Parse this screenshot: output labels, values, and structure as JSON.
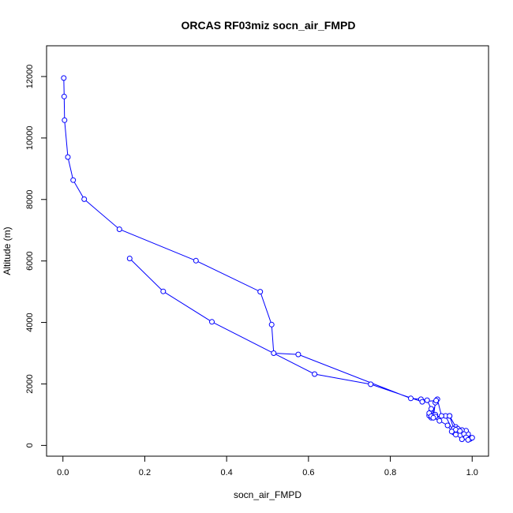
{
  "chart_data": {
    "type": "line",
    "title": "ORCAS RF03miz socn_air_FMPD",
    "xlabel": "socn_air_FMPD",
    "ylabel": "Altitude (m)",
    "xlim": [
      -0.04,
      1.04
    ],
    "ylim": [
      -350,
      13000
    ],
    "x_ticks": [
      0.0,
      0.2,
      0.4,
      0.6,
      0.8,
      1.0
    ],
    "x_tick_labels": [
      "0.0",
      "0.2",
      "0.4",
      "0.6",
      "0.8",
      "1.0"
    ],
    "y_ticks": [
      0,
      2000,
      4000,
      6000,
      8000,
      10000,
      12000
    ],
    "y_tick_labels": [
      "0",
      "2000",
      "4000",
      "6000",
      "8000",
      "10000",
      "12000"
    ],
    "grid": false,
    "series": [
      {
        "color": "#0000ff",
        "x": [
          0.002,
          0.003,
          0.004,
          0.012,
          0.025,
          0.052,
          0.138,
          0.325,
          0.482,
          0.51,
          0.515,
          0.575,
          0.85,
          0.875,
          0.89,
          0.9,
          0.91,
          0.895,
          0.905,
          0.945,
          0.96,
          0.975,
          0.99,
          0.995,
          1.0,
          0.99,
          0.985,
          0.975,
          0.965,
          0.955,
          0.935,
          0.91,
          0.9,
          0.895,
          0.9,
          0.915,
          0.925,
          0.945,
          0.955,
          0.96,
          0.97,
          0.98,
          0.985,
          0.99,
          0.975,
          0.96,
          0.95,
          0.94,
          0.92,
          0.905,
          0.91,
          0.912,
          0.878,
          0.752,
          0.615,
          0.364,
          0.245,
          0.163
        ],
        "y": [
          11950,
          11350,
          10580,
          9380,
          8630,
          8010,
          7030,
          6010,
          5000,
          3930,
          3000,
          2960,
          1530,
          1500,
          1470,
          1190,
          1000,
          970,
          900,
          960,
          600,
          470,
          330,
          210,
          250,
          370,
          480,
          500,
          540,
          420,
          960,
          940,
          900,
          1050,
          950,
          1500,
          960,
          960,
          540,
          510,
          470,
          370,
          260,
          180,
          200,
          350,
          450,
          650,
          800,
          900,
          1390,
          1460,
          1420,
          1990,
          2320,
          4020,
          5010,
          6080
        ]
      }
    ]
  }
}
